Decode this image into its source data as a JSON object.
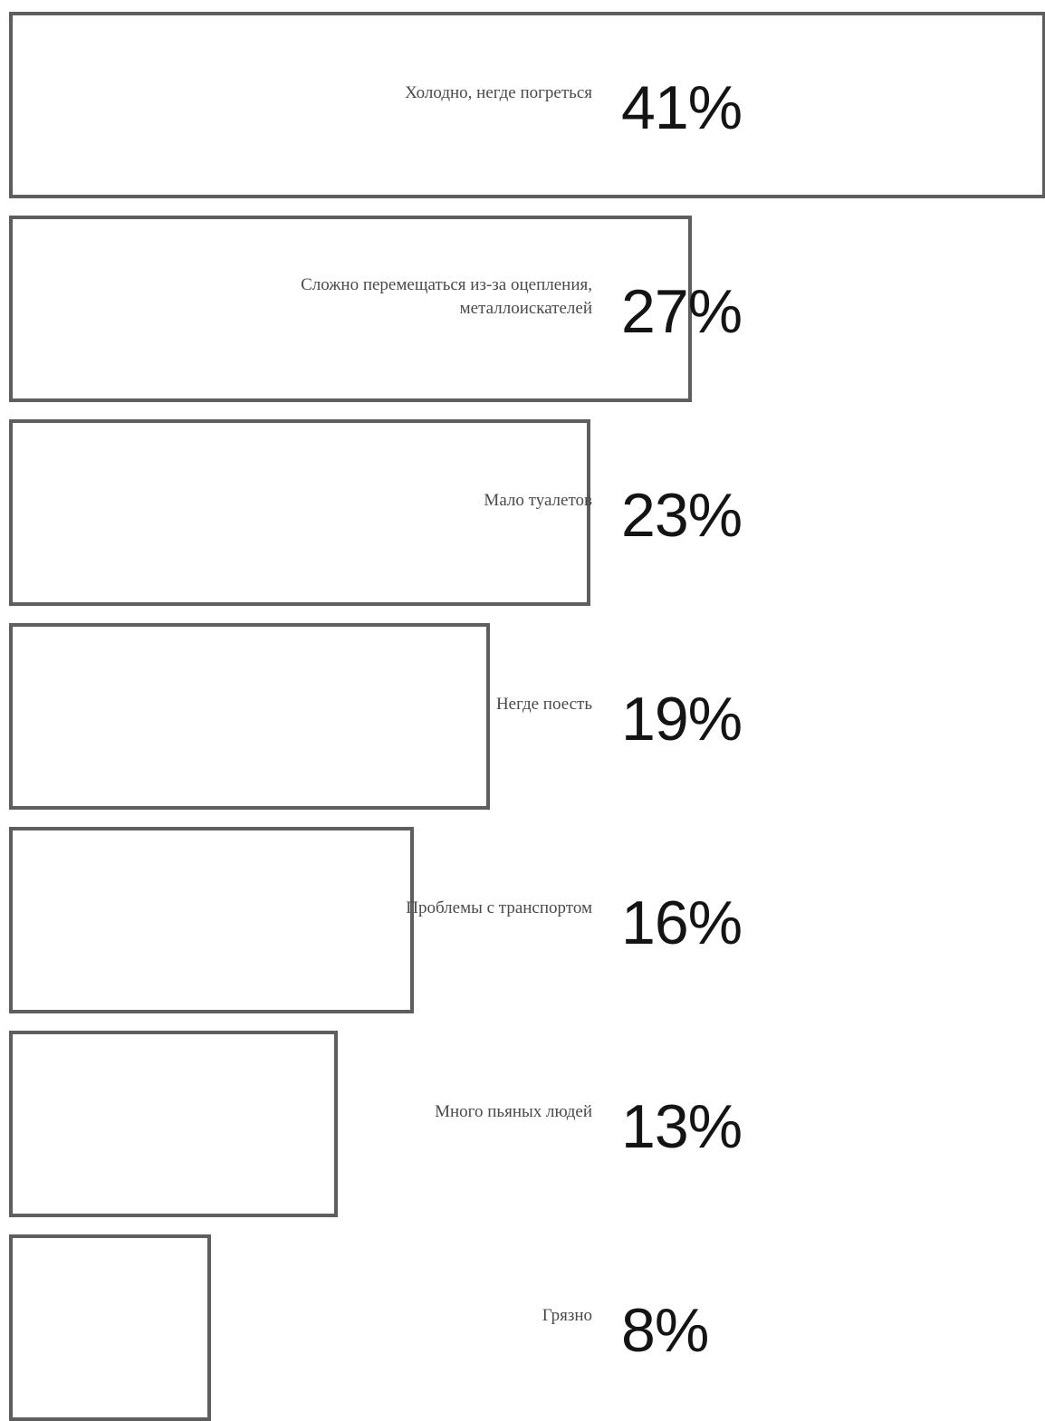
{
  "chart_data": {
    "type": "bar",
    "orientation": "horizontal",
    "categories": [
      "Холодно, негде погреться",
      "Сложно перемещаться из-за оцепления, металлоискателей",
      "Мало туалетов",
      "Негде поесть",
      "Проблемы с транспортом",
      "Много пьяных людей",
      "Грязно"
    ],
    "value_labels": [
      "41%",
      "27%",
      "23%",
      "19%",
      "16%",
      "13%",
      "8%"
    ],
    "values": [
      41,
      27,
      23,
      19,
      16,
      13,
      8
    ],
    "xlim": [
      0,
      41
    ],
    "grid": false,
    "bar_fill": "#ffffff",
    "bar_border": "#5e5e5e"
  }
}
